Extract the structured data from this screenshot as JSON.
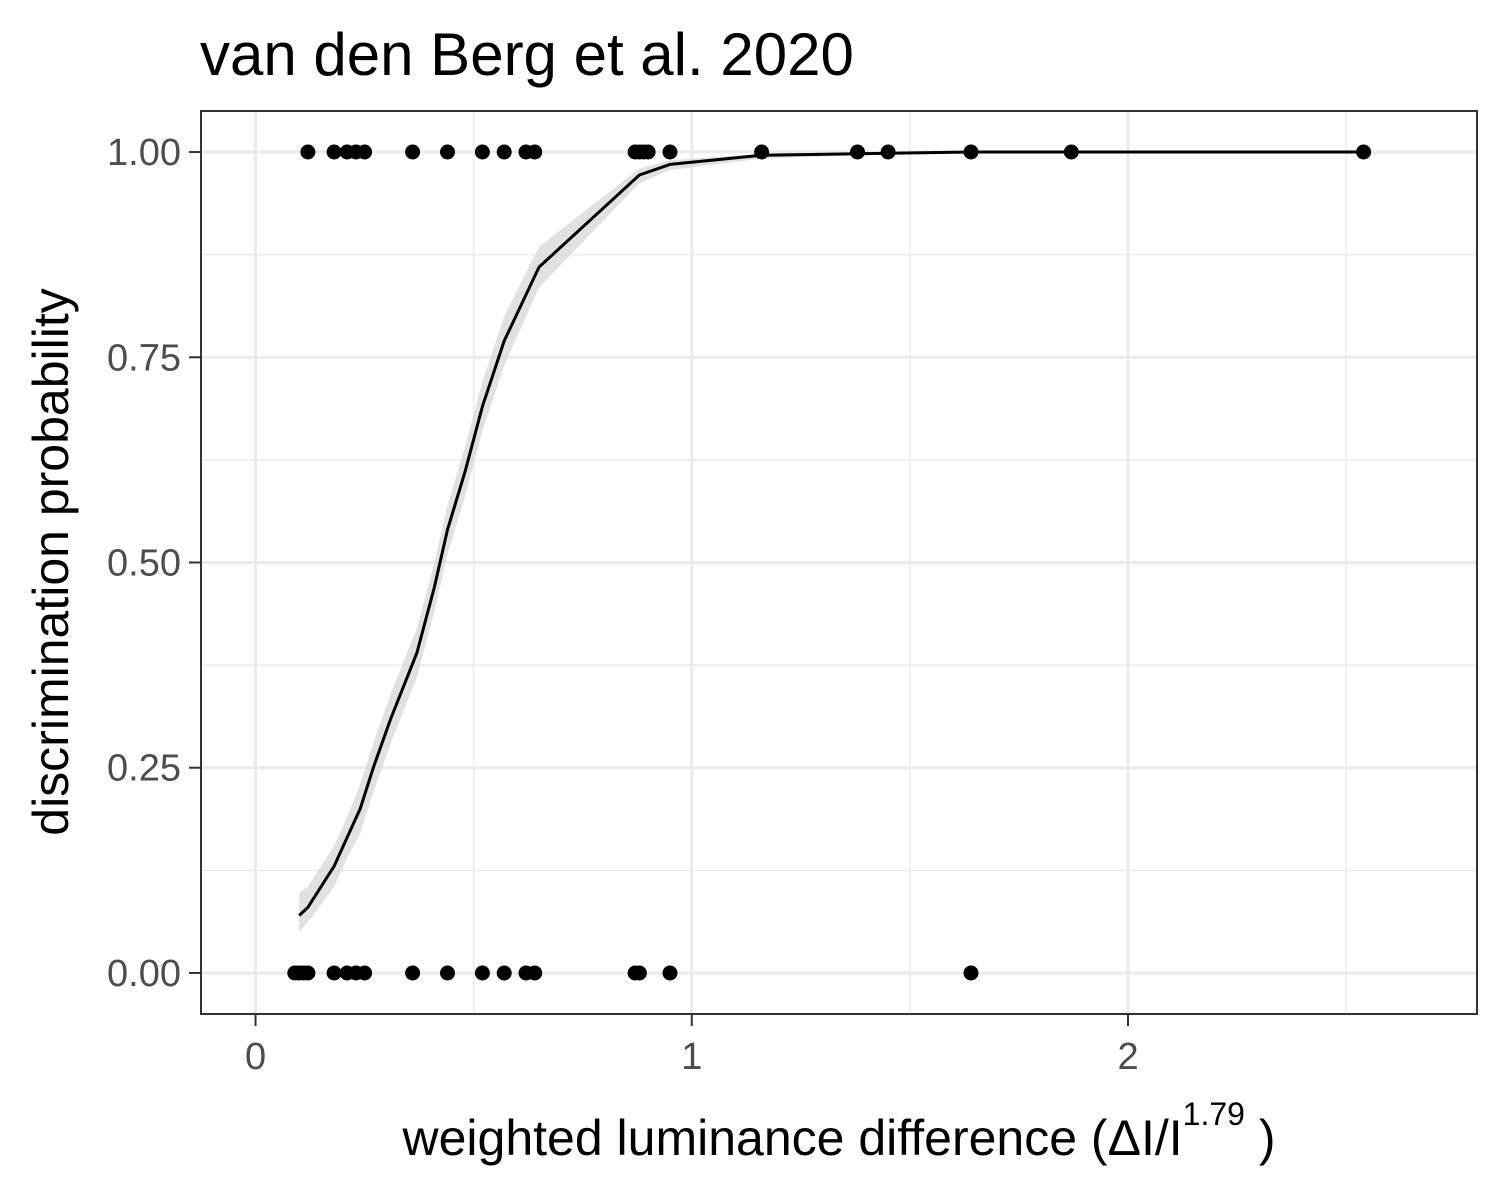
{
  "chart_data": {
    "type": "scatter",
    "title": "van den Berg et al. 2020",
    "xlabel": {
      "main": "weighted  luminance  difference (ΔI/I",
      "superscript": "1.79",
      "close": " )"
    },
    "ylabel": "discrimination probability",
    "xlim": [
      -0.125,
      2.8
    ],
    "ylim": [
      -0.05,
      1.05
    ],
    "x_ticks": [
      {
        "value": 0,
        "label": "0"
      },
      {
        "value": 1,
        "label": "1"
      },
      {
        "value": 2,
        "label": "2"
      }
    ],
    "y_ticks": [
      {
        "value": 0,
        "label": "0.00"
      },
      {
        "value": 0.25,
        "label": "0.25"
      },
      {
        "value": 0.5,
        "label": "0.50"
      },
      {
        "value": 0.75,
        "label": "0.75"
      },
      {
        "value": 1,
        "label": "1.00"
      }
    ],
    "x_minor_breaks": [
      0.5,
      1.5,
      2.5
    ],
    "y_minor_breaks": [
      0.125,
      0.375,
      0.625,
      0.875
    ],
    "grid": true,
    "colors": {
      "points": "#000000",
      "line": "#000000",
      "ribbon": "#d9d9d9",
      "grid": "#ebebeb",
      "panel_border": "#333333"
    },
    "points": [
      {
        "x": 0.12,
        "y": 1
      },
      {
        "x": 0.18,
        "y": 1
      },
      {
        "x": 0.21,
        "y": 1
      },
      {
        "x": 0.23,
        "y": 1
      },
      {
        "x": 0.25,
        "y": 1
      },
      {
        "x": 0.36,
        "y": 1
      },
      {
        "x": 0.44,
        "y": 1
      },
      {
        "x": 0.52,
        "y": 1
      },
      {
        "x": 0.57,
        "y": 1
      },
      {
        "x": 0.62,
        "y": 1
      },
      {
        "x": 0.64,
        "y": 1
      },
      {
        "x": 0.87,
        "y": 1
      },
      {
        "x": 0.88,
        "y": 1
      },
      {
        "x": 0.89,
        "y": 1
      },
      {
        "x": 0.9,
        "y": 1
      },
      {
        "x": 0.95,
        "y": 1
      },
      {
        "x": 1.16,
        "y": 1
      },
      {
        "x": 1.38,
        "y": 1
      },
      {
        "x": 1.45,
        "y": 1
      },
      {
        "x": 1.64,
        "y": 1
      },
      {
        "x": 1.87,
        "y": 1
      },
      {
        "x": 2.54,
        "y": 1
      },
      {
        "x": 0.09,
        "y": 0
      },
      {
        "x": 0.1,
        "y": 0
      },
      {
        "x": 0.11,
        "y": 0
      },
      {
        "x": 0.12,
        "y": 0
      },
      {
        "x": 0.18,
        "y": 0
      },
      {
        "x": 0.21,
        "y": 0
      },
      {
        "x": 0.23,
        "y": 0
      },
      {
        "x": 0.25,
        "y": 0
      },
      {
        "x": 0.36,
        "y": 0
      },
      {
        "x": 0.44,
        "y": 0
      },
      {
        "x": 0.52,
        "y": 0
      },
      {
        "x": 0.57,
        "y": 0
      },
      {
        "x": 0.62,
        "y": 0
      },
      {
        "x": 0.64,
        "y": 0
      },
      {
        "x": 0.87,
        "y": 0
      },
      {
        "x": 0.88,
        "y": 0
      },
      {
        "x": 0.95,
        "y": 0
      },
      {
        "x": 1.64,
        "y": 0
      }
    ],
    "fit_line": {
      "x": [
        0.1,
        0.12,
        0.18,
        0.21,
        0.24,
        0.27,
        0.31,
        0.37,
        0.41,
        0.44,
        0.48,
        0.52,
        0.57,
        0.65,
        0.88,
        0.95,
        1.16,
        1.38,
        1.64,
        1.87,
        2.54
      ],
      "y": [
        0.07,
        0.08,
        0.13,
        0.165,
        0.2,
        0.25,
        0.31,
        0.39,
        0.47,
        0.54,
        0.61,
        0.69,
        0.77,
        0.86,
        0.972,
        0.985,
        0.996,
        0.998,
        1.0,
        1.0,
        1.0
      ],
      "lower": [
        0.05,
        0.062,
        0.105,
        0.14,
        0.17,
        0.22,
        0.28,
        0.36,
        0.44,
        0.51,
        0.58,
        0.66,
        0.74,
        0.835,
        0.962,
        0.978,
        0.992,
        0.996,
        0.999,
        0.999,
        1.0
      ],
      "upper": [
        0.098,
        0.105,
        0.155,
        0.19,
        0.23,
        0.28,
        0.34,
        0.42,
        0.5,
        0.57,
        0.64,
        0.72,
        0.8,
        0.885,
        0.98,
        0.99,
        0.998,
        0.999,
        1.0,
        1.0,
        1.0
      ]
    }
  }
}
